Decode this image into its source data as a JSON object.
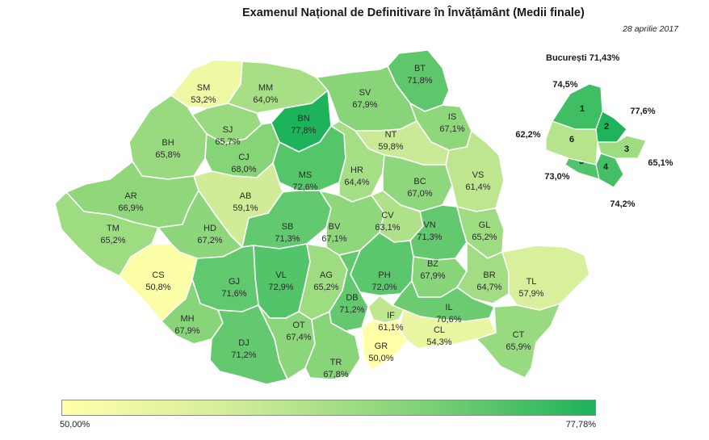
{
  "title": "Examenul Național de Definitivare în Învățământ (Medii finale)",
  "date": "28 aprilie 2017",
  "legend": {
    "min": "50,00%",
    "max": "77,78%",
    "min_value": 50.0,
    "max_value": 77.78
  },
  "bucharest": {
    "title": "București 71,43%",
    "sectors": [
      {
        "num": "1",
        "value": "74,5%",
        "v": 74.5
      },
      {
        "num": "2",
        "value": "77,6%",
        "v": 77.6
      },
      {
        "num": "3",
        "value": "65,1%",
        "v": 65.1
      },
      {
        "num": "4",
        "value": "74,2%",
        "v": 74.2
      },
      {
        "num": "5",
        "value": "73,0%",
        "v": 73.0
      },
      {
        "num": "6",
        "value": "62,2%",
        "v": 62.2
      }
    ]
  },
  "counties": [
    {
      "code": "SM",
      "value": "53,2%",
      "v": 53.2
    },
    {
      "code": "MM",
      "value": "64,0%",
      "v": 64.0
    },
    {
      "code": "BT",
      "value": "71,8%",
      "v": 71.8
    },
    {
      "code": "SV",
      "value": "67,9%",
      "v": 67.9
    },
    {
      "code": "BN",
      "value": "77,8%",
      "v": 77.8
    },
    {
      "code": "SJ",
      "value": "65,7%",
      "v": 65.7
    },
    {
      "code": "BH",
      "value": "65,8%",
      "v": 65.8
    },
    {
      "code": "CJ",
      "value": "68,0%",
      "v": 68.0
    },
    {
      "code": "IS",
      "value": "67,1%",
      "v": 67.1
    },
    {
      "code": "NT",
      "value": "59,8%",
      "v": 59.8
    },
    {
      "code": "MS",
      "value": "72,6%",
      "v": 72.6
    },
    {
      "code": "HR",
      "value": "64,4%",
      "v": 64.4
    },
    {
      "code": "BC",
      "value": "67,0%",
      "v": 67.0
    },
    {
      "code": "VS",
      "value": "61,4%",
      "v": 61.4
    },
    {
      "code": "AR",
      "value": "66,9%",
      "v": 66.9
    },
    {
      "code": "AB",
      "value": "59,1%",
      "v": 59.1
    },
    {
      "code": "TM",
      "value": "65,2%",
      "v": 65.2
    },
    {
      "code": "HD",
      "value": "67,2%",
      "v": 67.2
    },
    {
      "code": "SB",
      "value": "71,3%",
      "v": 71.3
    },
    {
      "code": "BV",
      "value": "67,1%",
      "v": 67.1
    },
    {
      "code": "CV",
      "value": "63,1%",
      "v": 63.1
    },
    {
      "code": "VN",
      "value": "71,3%",
      "v": 71.3
    },
    {
      "code": "GL",
      "value": "65,2%",
      "v": 65.2
    },
    {
      "code": "CS",
      "value": "50,8%",
      "v": 50.8
    },
    {
      "code": "VL",
      "value": "72,9%",
      "v": 72.9
    },
    {
      "code": "AG",
      "value": "65,2%",
      "v": 65.2
    },
    {
      "code": "PH",
      "value": "72,0%",
      "v": 72.0
    },
    {
      "code": "BZ",
      "value": "67,9%",
      "v": 67.9
    },
    {
      "code": "BR",
      "value": "64,7%",
      "v": 64.7
    },
    {
      "code": "TL",
      "value": "57,9%",
      "v": 57.9
    },
    {
      "code": "GJ",
      "value": "71,6%",
      "v": 71.6
    },
    {
      "code": "DB",
      "value": "71,2%",
      "v": 71.2
    },
    {
      "code": "IL",
      "value": "70,6%",
      "v": 70.6
    },
    {
      "code": "IF",
      "value": "61,1%",
      "v": 61.1
    },
    {
      "code": "MH",
      "value": "67,9%",
      "v": 67.9
    },
    {
      "code": "OT",
      "value": "67,4%",
      "v": 67.4
    },
    {
      "code": "DJ",
      "value": "71,2%",
      "v": 71.2
    },
    {
      "code": "CL",
      "value": "54,3%",
      "v": 54.3
    },
    {
      "code": "CT",
      "value": "65,9%",
      "v": 65.9
    },
    {
      "code": "TR",
      "value": "67,8%",
      "v": 67.8
    },
    {
      "code": "GR",
      "value": "50,0%",
      "v": 50.0
    }
  ]
}
